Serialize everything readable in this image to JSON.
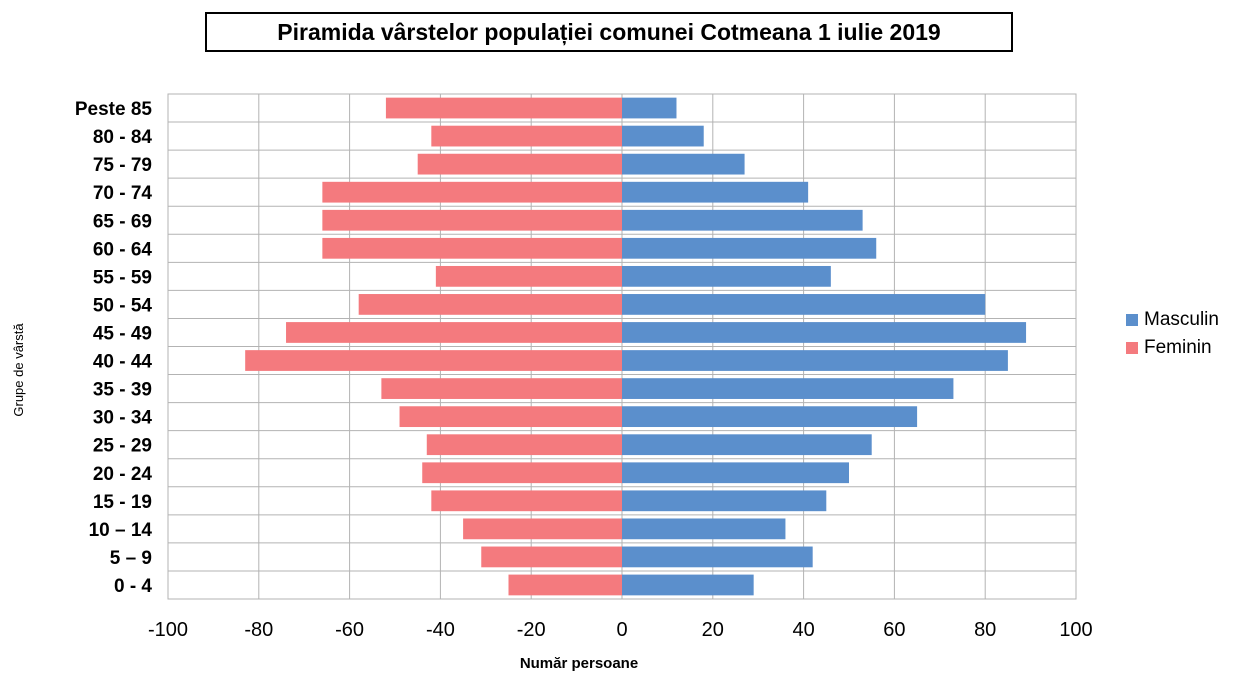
{
  "chart_data": {
    "type": "bar",
    "orientation": "horizontal",
    "title": "Piramida vârstelor populației comunei Cotmeana 1 iulie 2019",
    "xlabel": "Număr persoane",
    "ylabel": "Grupe de vârstă",
    "categories": [
      "Peste 85",
      "80 - 84",
      "75 - 79",
      "70 - 74",
      "65 - 69",
      "60 - 64",
      "55 - 59",
      "50 - 54",
      "45 - 49",
      "40 - 44",
      "35 - 39",
      "30 - 34",
      "25 - 29",
      "20 - 24",
      "15 - 19",
      "10 – 14",
      "5 – 9",
      "0 - 4"
    ],
    "series": [
      {
        "name": "Masculin",
        "color": "#5B8FCC",
        "values": [
          12,
          18,
          27,
          41,
          53,
          56,
          46,
          80,
          89,
          85,
          73,
          65,
          55,
          50,
          45,
          36,
          42,
          29
        ]
      },
      {
        "name": "Feminin",
        "color": "#F47A7E",
        "values": [
          -52,
          -42,
          -45,
          -66,
          -66,
          -66,
          -41,
          -58,
          -74,
          -83,
          -53,
          -49,
          -43,
          -44,
          -42,
          -35,
          -31,
          -25
        ]
      }
    ],
    "xlim": [
      -100,
      100
    ],
    "xticks": [
      "-100",
      "-80",
      "-60",
      "-40",
      "-20",
      "0",
      "20",
      "40",
      "60",
      "80",
      "100"
    ],
    "grid": true,
    "legend_position": "right"
  }
}
